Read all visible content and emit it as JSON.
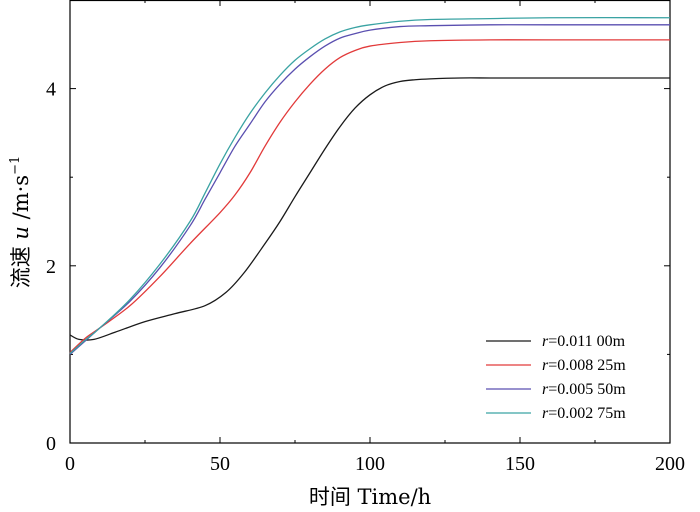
{
  "chart_data": {
    "type": "line",
    "title": "",
    "xlabel": "时间  Time/h",
    "ylabel_main": "流速 ",
    "ylabel_var": "u",
    "ylabel_unit": " /m·s",
    "ylabel_exp": "−1",
    "xlim": [
      0,
      200
    ],
    "ylim": [
      0,
      5
    ],
    "xticks": [
      0,
      50,
      100,
      150,
      200
    ],
    "yticks": [
      0,
      2,
      4
    ],
    "xtick_labels": [
      "0",
      "50",
      "100",
      "150",
      "200"
    ],
    "ytick_labels": [
      "0",
      "2",
      "4"
    ],
    "grid": false,
    "legend_position": "bottom-right",
    "series": [
      {
        "name": "r=0.011 00m",
        "legend_var": "r",
        "legend_value": "=0.011 00m",
        "color": "#1a1a1a",
        "x": [
          0,
          3,
          8,
          15,
          25,
          35,
          45,
          52,
          58,
          65,
          70,
          75,
          80,
          85,
          90,
          95,
          100,
          105,
          110,
          115,
          120,
          130,
          140,
          150,
          170,
          200
        ],
        "y": [
          1.22,
          1.17,
          1.17,
          1.25,
          1.37,
          1.46,
          1.55,
          1.7,
          1.92,
          2.25,
          2.5,
          2.78,
          3.05,
          3.32,
          3.57,
          3.78,
          3.93,
          4.03,
          4.08,
          4.1,
          4.11,
          4.12,
          4.12,
          4.12,
          4.12,
          4.12
        ]
      },
      {
        "name": "r=0.008 25m",
        "legend_var": "r",
        "legend_value": "=0.008 25m",
        "color": "#e23a3a",
        "x": [
          0,
          5,
          10,
          20,
          30,
          40,
          50,
          55,
          60,
          65,
          70,
          75,
          80,
          85,
          90,
          95,
          100,
          110,
          120,
          140,
          160,
          200
        ],
        "y": [
          1.02,
          1.18,
          1.3,
          1.55,
          1.88,
          2.25,
          2.6,
          2.8,
          3.05,
          3.35,
          3.62,
          3.85,
          4.05,
          4.22,
          4.35,
          4.43,
          4.48,
          4.52,
          4.54,
          4.55,
          4.55,
          4.55
        ]
      },
      {
        "name": "r=0.005 50m",
        "legend_var": "r",
        "legend_value": "=0.005 50m",
        "color": "#5a4fb0",
        "x": [
          0,
          5,
          10,
          20,
          30,
          40,
          45,
          50,
          55,
          60,
          65,
          70,
          75,
          80,
          85,
          90,
          95,
          100,
          110,
          120,
          140,
          160,
          200
        ],
        "y": [
          1.0,
          1.15,
          1.3,
          1.6,
          1.98,
          2.45,
          2.75,
          3.05,
          3.35,
          3.6,
          3.85,
          4.05,
          4.22,
          4.36,
          4.48,
          4.57,
          4.62,
          4.66,
          4.7,
          4.71,
          4.72,
          4.72,
          4.72
        ]
      },
      {
        "name": "r=0.002 75m",
        "legend_var": "r",
        "legend_value": "=0.002 75m",
        "color": "#3aa3a3",
        "x": [
          0,
          5,
          10,
          20,
          30,
          40,
          45,
          50,
          55,
          60,
          65,
          70,
          75,
          80,
          85,
          90,
          95,
          100,
          110,
          120,
          140,
          160,
          200
        ],
        "y": [
          1.01,
          1.16,
          1.3,
          1.62,
          2.02,
          2.5,
          2.82,
          3.15,
          3.45,
          3.72,
          3.95,
          4.15,
          4.32,
          4.45,
          4.56,
          4.64,
          4.69,
          4.72,
          4.76,
          4.78,
          4.79,
          4.8,
          4.8
        ]
      }
    ]
  }
}
